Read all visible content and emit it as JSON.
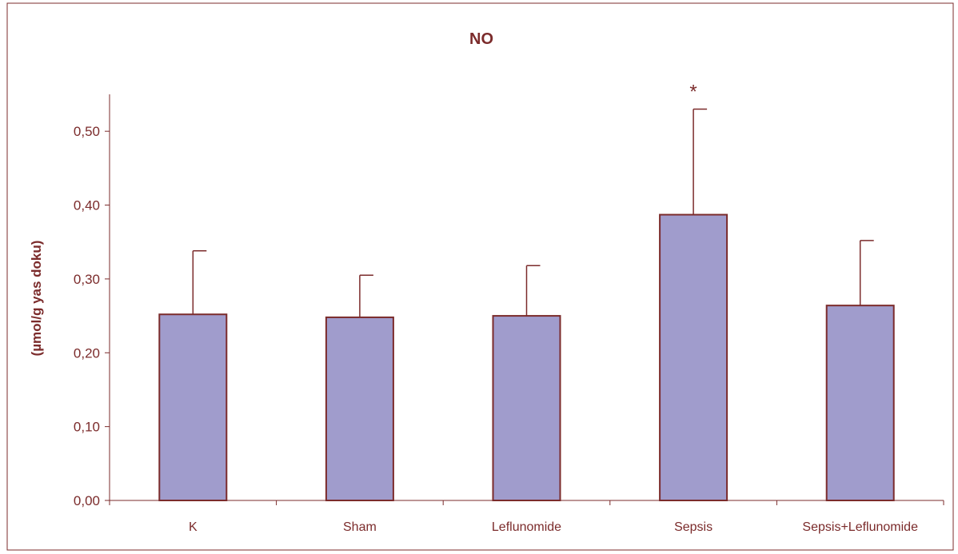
{
  "chart_data": {
    "type": "bar",
    "title": "NO",
    "xlabel": "",
    "ylabel": "(µmol/g yas doku)",
    "ylim": [
      0,
      0.55
    ],
    "yticks": [
      0.0,
      0.1,
      0.2,
      0.3,
      0.4,
      0.5
    ],
    "ytick_labels": [
      "0,00",
      "0,10",
      "0,20",
      "0,30",
      "0,40",
      "0,50"
    ],
    "categories": [
      "K",
      "Sham",
      "Leflunomide",
      "Sepsis",
      "Sepsis+Leflunomide"
    ],
    "values": [
      0.252,
      0.248,
      0.25,
      0.387,
      0.264
    ],
    "error_upper": [
      0.338,
      0.305,
      0.318,
      0.53,
      0.352
    ],
    "annotations": [
      {
        "category_index": 3,
        "text": "*"
      }
    ],
    "grid": false,
    "legend": "none",
    "colors": {
      "bar_fill": "#a09ccc",
      "bar_stroke": "#7b2b2b",
      "axis": "#7b2b2b",
      "text": "#7b2b2b",
      "frame": "#7b2b2b"
    }
  }
}
